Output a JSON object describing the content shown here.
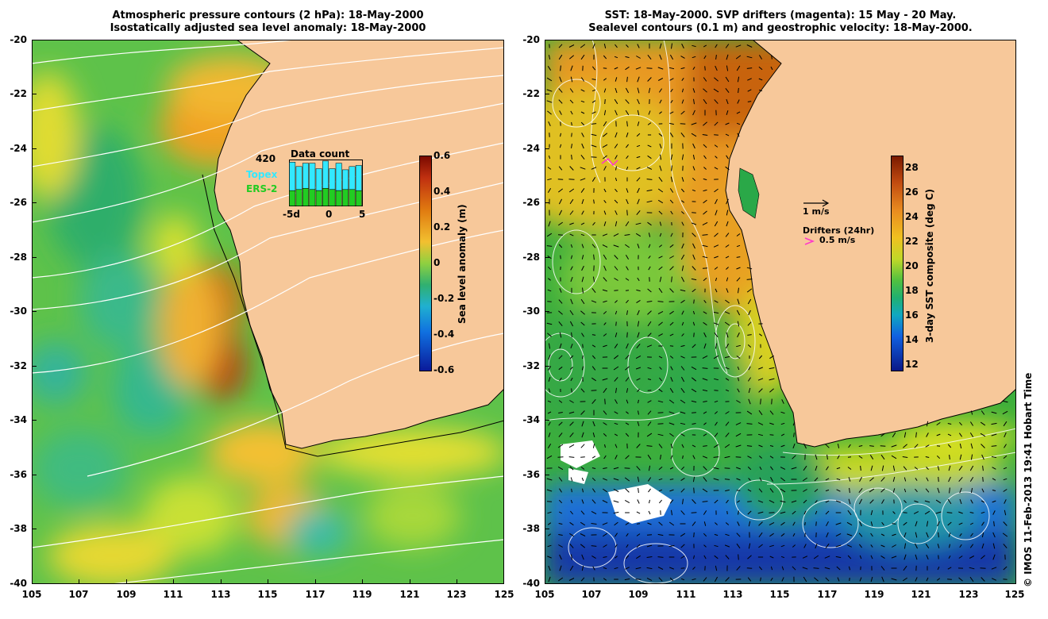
{
  "left_panel": {
    "title_line1": "Atmospheric pressure contours (2 hPa): 18-May-2000",
    "title_line2": "Isostatically adjusted sea level anomaly: 18-May-2000",
    "colorbar_label": "Sea level anomaly (m)",
    "colorbar_ticks": [
      "0.6",
      "0.4",
      "0.2",
      "0",
      "-0.2",
      "-0.4",
      "-0.6"
    ],
    "inset": {
      "title": "Data count",
      "max_label": "420",
      "legend_topex": "Topex",
      "legend_ers2": "ERS-2",
      "x_ticks": [
        "-5d",
        "0",
        "5"
      ],
      "topex_counts": [
        260,
        210,
        230,
        240,
        200,
        250,
        190,
        250,
        180,
        210,
        230
      ],
      "ers2_counts": [
        140,
        150,
        160,
        150,
        140,
        160,
        150,
        140,
        150,
        150,
        140
      ]
    }
  },
  "right_panel": {
    "title_line1": "SST: 18-May-2000. SVP drifters (magenta): 15 May - 20 May.",
    "title_line2": "Sealevel contours (0.1 m) and geostrophic velocity: 18-May-2000.",
    "colorbar_label": "3-day SST composite (deg C)",
    "colorbar_ticks": [
      "28",
      "26",
      "24",
      "22",
      "20",
      "18",
      "16",
      "14",
      "12"
    ],
    "scale_arrow_label": "1 m/s",
    "drifter_legend_title": "Drifters (24hr)",
    "drifter_speed_label": "0.5 m/s"
  },
  "axes": {
    "lat_ticks": [
      "-20",
      "-22",
      "-24",
      "-26",
      "-28",
      "-30",
      "-32",
      "-34",
      "-36",
      "-38",
      "-40"
    ],
    "lon_ticks": [
      "105",
      "107",
      "109",
      "111",
      "113",
      "115",
      "117",
      "119",
      "121",
      "123",
      "125"
    ]
  },
  "credit": "© IMOS 11-Feb-2013 19:41 Hobart Time",
  "colors": {
    "land": "#f7c89a",
    "drifter": "#ff33cc",
    "topex": "#33e8ff",
    "ers2": "#22cc22"
  }
}
